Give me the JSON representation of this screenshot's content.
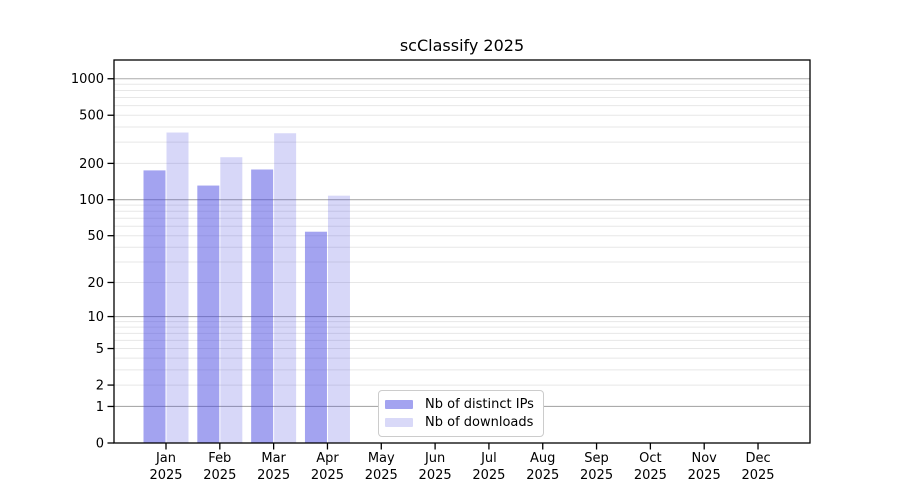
{
  "chart_data": {
    "type": "bar",
    "title": "scClassify 2025",
    "categories": [
      "Jan 2025",
      "Feb 2025",
      "Mar 2025",
      "Apr 2025",
      "May 2025",
      "Jun 2025",
      "Jul 2025",
      "Aug 2025",
      "Sep 2025",
      "Oct 2025",
      "Nov 2025",
      "Dec 2025"
    ],
    "series": [
      {
        "name": "Nb of distinct IPs",
        "values": [
          175,
          131,
          178,
          54,
          null,
          null,
          null,
          null,
          null,
          null,
          null,
          null
        ],
        "color": "#a3a3f0",
        "fill": "rgba(71,71,225,0.50)"
      },
      {
        "name": "Nb of downloads",
        "values": [
          360,
          225,
          355,
          108,
          null,
          null,
          null,
          null,
          null,
          null,
          null,
          null
        ],
        "color": "#d9d9f8",
        "fill": "rgba(71,71,225,0.22)"
      }
    ],
    "yscale": "log1p",
    "yticks": [
      1000,
      500,
      200,
      100,
      50,
      20,
      10,
      5,
      2,
      1,
      0
    ],
    "ylim": [
      0,
      1500
    ],
    "grid": {
      "major_color": "#ababab",
      "minor_color": "#e7e7e7",
      "major_at": [
        1,
        10,
        100,
        1000
      ]
    },
    "axis_color": "#000000",
    "legend_position": "lower-center"
  }
}
